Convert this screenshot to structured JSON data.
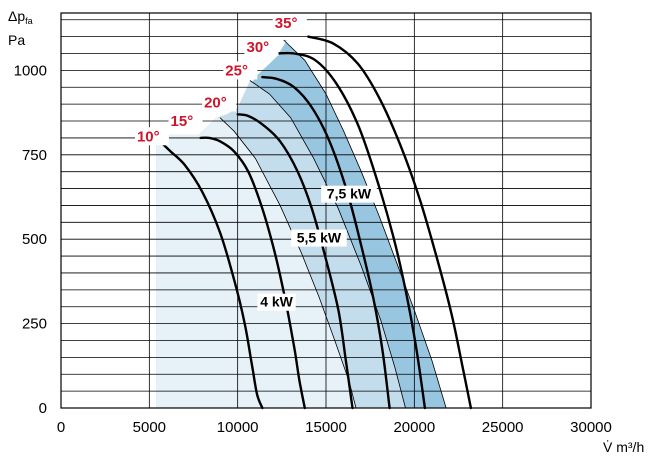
{
  "chart_data": {
    "type": "line",
    "title": "",
    "ylabel": "Δp",
    "ylabel_sub": "fa",
    "yunit": "Pa",
    "xlabel": "V̇ m³/h",
    "xlim": [
      0,
      30000
    ],
    "ylim": [
      0,
      1200
    ],
    "xticks": [
      "0",
      "5000",
      "10000",
      "15000",
      "20000",
      "25000",
      "30000"
    ],
    "xtick_values": [
      0,
      5000,
      10000,
      15000,
      20000,
      25000,
      30000
    ],
    "yticks": [
      "0",
      "250",
      "500",
      "750",
      "1000"
    ],
    "ytick_values": [
      0,
      250,
      500,
      750,
      1000
    ],
    "minor_y_step": 50,
    "grid": true,
    "colors": {
      "blade_angle_label": "#d0142b",
      "zone_4kw": "#e6f1f8",
      "zone_5_5kw": "#c4dded",
      "zone_7_5kw": "#98c6e0",
      "curve": "#000000"
    },
    "series": [
      {
        "name": "10°",
        "x": [
          5200,
          5600,
          6200,
          7000,
          8000,
          9000,
          9800,
          10400,
          10800,
          11100,
          11400
        ],
        "y": [
          810,
          790,
          760,
          720,
          640,
          520,
          380,
          250,
          130,
          40,
          0
        ]
      },
      {
        "name": "15°",
        "x": [
          7900,
          8400,
          9000,
          9800,
          10600,
          11400,
          12100,
          12700,
          13200,
          13500,
          13800
        ],
        "y": [
          800,
          800,
          790,
          760,
          700,
          590,
          460,
          320,
          180,
          80,
          0
        ]
      },
      {
        "name": "20°",
        "x": [
          10000,
          10600,
          11400,
          12400,
          13400,
          14200,
          15000,
          15700,
          16100,
          16500
        ],
        "y": [
          870,
          865,
          840,
          790,
          700,
          590,
          440,
          290,
          150,
          0
        ]
      },
      {
        "name": "25°",
        "x": [
          11400,
          12200,
          13200,
          14200,
          15200,
          16200,
          17000,
          17700,
          18200,
          18600
        ],
        "y": [
          980,
          975,
          950,
          890,
          790,
          640,
          480,
          320,
          170,
          0
        ]
      },
      {
        "name": "30°",
        "x": [
          12200,
          13200,
          14400,
          15600,
          16800,
          17800,
          18800,
          19500,
          20100,
          20600
        ],
        "y": [
          1050,
          1050,
          1030,
          960,
          840,
          690,
          510,
          350,
          180,
          0
        ]
      },
      {
        "name": "35°",
        "x": [
          14000,
          15400,
          16800,
          18000,
          19200,
          20300,
          21300,
          22100,
          22700,
          23200
        ],
        "y": [
          1100,
          1080,
          1020,
          920,
          780,
          620,
          440,
          280,
          130,
          0
        ]
      }
    ],
    "power_zones": [
      {
        "label": "4 kW",
        "label_at": [
          12200,
          300
        ],
        "boundary_x": [
          9000,
          9800,
          11000,
          12400,
          13600,
          14600,
          15500,
          16300,
          16700
        ],
        "boundary_y": [
          860,
          820,
          740,
          600,
          460,
          330,
          200,
          80,
          0
        ]
      },
      {
        "label": "5,5 kW",
        "label_at": [
          14600,
          490
        ],
        "boundary_x": [
          10700,
          11800,
          13000,
          14300,
          15700,
          17000,
          18100,
          18900,
          19500
        ],
        "boundary_y": [
          970,
          930,
          860,
          740,
          590,
          420,
          260,
          120,
          0
        ]
      },
      {
        "label": "7,5 kW",
        "label_at": [
          16300,
          620
        ],
        "boundary_x": [
          12600,
          13800,
          15000,
          16000,
          17000,
          18000,
          19000,
          20000,
          21000,
          21800
        ],
        "boundary_y": [
          1090,
          1030,
          930,
          820,
          700,
          570,
          430,
          290,
          140,
          0
        ]
      }
    ],
    "annotations": [
      {
        "text": "10°",
        "at": [
          4300,
          790
        ]
      },
      {
        "text": "15°",
        "at": [
          6200,
          835
        ]
      },
      {
        "text": "20°",
        "at": [
          8100,
          890
        ]
      },
      {
        "text": "25°",
        "at": [
          9300,
          985
        ]
      },
      {
        "text": "30°",
        "at": [
          10500,
          1055
        ]
      },
      {
        "text": "35°",
        "at": [
          12100,
          1125
        ]
      }
    ]
  }
}
